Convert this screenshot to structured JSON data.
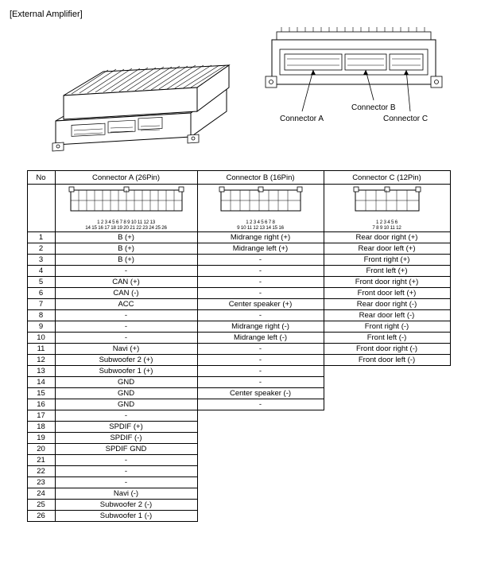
{
  "title": "[External Amplifier]",
  "panel_labels": {
    "conn_a": "Connector A",
    "conn_b": "Connector B",
    "conn_c": "Connector C"
  },
  "table": {
    "headers": {
      "no": "No",
      "a": "Connector A (26Pin)",
      "b": "Connector B (16Pin)",
      "c": "Connector C (12Pin)"
    },
    "conn_a_top": "1 2 3 4 5 6 7 8 9 10 11 12 13",
    "conn_a_bot": "14 15 16 17 18 19 20 21 22 23 24 25 26",
    "conn_b_top": "1 2 3 4 5 6 7 8",
    "conn_b_bot": "9 10 11 12 13 14 15 16",
    "conn_c_top": "1 2 3 4 5 6",
    "conn_c_bot": "7 8 9 10 11 12",
    "rows": [
      {
        "no": "1",
        "a": "B (+)",
        "b": "Midrange right (+)",
        "c": "Rear door right (+)"
      },
      {
        "no": "2",
        "a": "B (+)",
        "b": "Midrange left (+)",
        "c": "Rear door left (+)"
      },
      {
        "no": "3",
        "a": "B (+)",
        "b": "-",
        "c": "Front right (+)"
      },
      {
        "no": "4",
        "a": "-",
        "b": "-",
        "c": "Front left (+)"
      },
      {
        "no": "5",
        "a": "CAN (+)",
        "b": "-",
        "c": "Front door right (+)"
      },
      {
        "no": "6",
        "a": "CAN (-)",
        "b": "-",
        "c": "Front door left (+)"
      },
      {
        "no": "7",
        "a": "ACC",
        "b": "Center speaker (+)",
        "c": "Rear door right (-)"
      },
      {
        "no": "8",
        "a": "-",
        "b": "-",
        "c": "Rear door left (-)"
      },
      {
        "no": "9",
        "a": "-",
        "b": "Midrange right (-)",
        "c": "Front right (-)"
      },
      {
        "no": "10",
        "a": "-",
        "b": "Midrange left (-)",
        "c": "Front left (-)"
      },
      {
        "no": "11",
        "a": "Navi (+)",
        "b": "-",
        "c": "Front door right (-)"
      },
      {
        "no": "12",
        "a": "Subwoofer 2 (+)",
        "b": "-",
        "c": "Front door left (-)"
      },
      {
        "no": "13",
        "a": "Subwoofer 1 (+)",
        "b": "-",
        "c": null
      },
      {
        "no": "14",
        "a": "GND",
        "b": "-",
        "c": null
      },
      {
        "no": "15",
        "a": "GND",
        "b": "Center speaker (-)",
        "c": null
      },
      {
        "no": "16",
        "a": "GND",
        "b": "-",
        "c": null
      },
      {
        "no": "17",
        "a": "-",
        "b": null,
        "c": null
      },
      {
        "no": "18",
        "a": "SPDIF (+)",
        "b": null,
        "c": null
      },
      {
        "no": "19",
        "a": "SPDIF (-)",
        "b": null,
        "c": null
      },
      {
        "no": "20",
        "a": "SPDIF GND",
        "b": null,
        "c": null
      },
      {
        "no": "21",
        "a": "-",
        "b": null,
        "c": null
      },
      {
        "no": "22",
        "a": "-",
        "b": null,
        "c": null
      },
      {
        "no": "23",
        "a": "-",
        "b": null,
        "c": null
      },
      {
        "no": "24",
        "a": "Navi (-)",
        "b": null,
        "c": null
      },
      {
        "no": "25",
        "a": "Subwoofer 2 (-)",
        "b": null,
        "c": null
      },
      {
        "no": "26",
        "a": "Subwoofer 1 (-)",
        "b": null,
        "c": null
      }
    ]
  },
  "colors": {
    "stroke": "#000000",
    "fill_light": "#ffffff",
    "fill_shade": "#f7f7f7"
  }
}
